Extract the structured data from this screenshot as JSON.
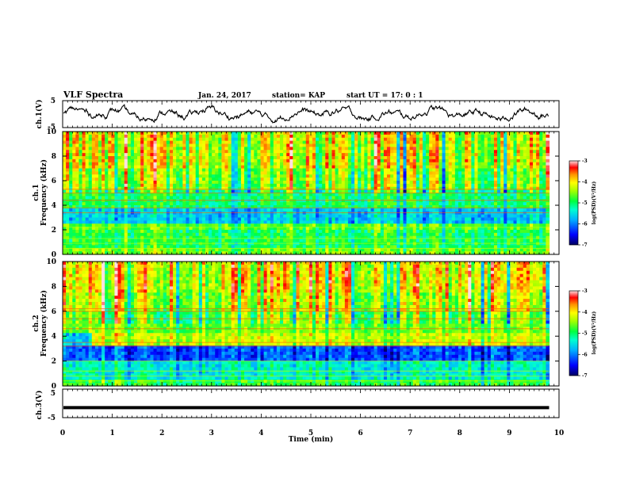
{
  "header": {
    "title": "VLF Spectra",
    "date": "Jan. 24, 2017",
    "station": "station= KAP",
    "start": "start  UT =   17: 0  : 1"
  },
  "chart_data": [
    {
      "type": "line",
      "panel": "ch1-waveform",
      "ylabel": "ch.1(V)",
      "ylim": [
        -5,
        5
      ],
      "yticks": [
        "5",
        "-5"
      ],
      "xlim": [
        0,
        10
      ],
      "trace": "noisy waveform oscillating roughly between -3 and +3 V",
      "x_end_min": 9.8
    },
    {
      "type": "heatmap",
      "panel": "ch1-spectrogram",
      "ylabel": "ch.1\nFrequency (kHz)",
      "ylim": [
        0,
        10
      ],
      "yticks": [
        "0",
        "2",
        "4",
        "6",
        "8",
        "10"
      ],
      "xlim": [
        0,
        10
      ],
      "x_end_min": 9.8,
      "colorbar": {
        "label": "log(PSD)(V²/Hz)",
        "range": [
          -7,
          -3
        ],
        "ticks": [
          "-3",
          "-4",
          "-5",
          "-6",
          "-7"
        ]
      }
    },
    {
      "type": "heatmap",
      "panel": "ch2-spectrogram",
      "ylabel": "ch.2\nFrequency (kHz)",
      "ylim": [
        0,
        10
      ],
      "yticks": [
        "0",
        "2",
        "4",
        "6",
        "8",
        "10"
      ],
      "xlim": [
        0,
        10
      ],
      "x_end_min": 9.8,
      "colorbar": {
        "label": "log(PSD)(V²/Hz)",
        "range": [
          -7,
          -3
        ],
        "ticks": [
          "-3",
          "-4",
          "-5",
          "-6",
          "-7"
        ]
      }
    },
    {
      "type": "line",
      "panel": "ch3-waveform",
      "ylabel": "ch.3(V)",
      "ylim": [
        -5,
        5
      ],
      "yticks": [
        "5",
        "-5"
      ],
      "xlim": [
        0,
        10
      ],
      "trace": "flat line near -1.5 V",
      "value": -1.5
    }
  ],
  "xaxis": {
    "label": "Time (min)",
    "ticks": [
      "0",
      "1",
      "2",
      "3",
      "4",
      "5",
      "6",
      "7",
      "8",
      "9",
      "10"
    ]
  },
  "colors": {
    "axis": "#000000",
    "colormap": [
      "#000080",
      "#0000ff",
      "#00a0ff",
      "#00ffff",
      "#00ff60",
      "#80ff00",
      "#ffff00",
      "#ffa000",
      "#ff0000",
      "#ffffff"
    ]
  }
}
